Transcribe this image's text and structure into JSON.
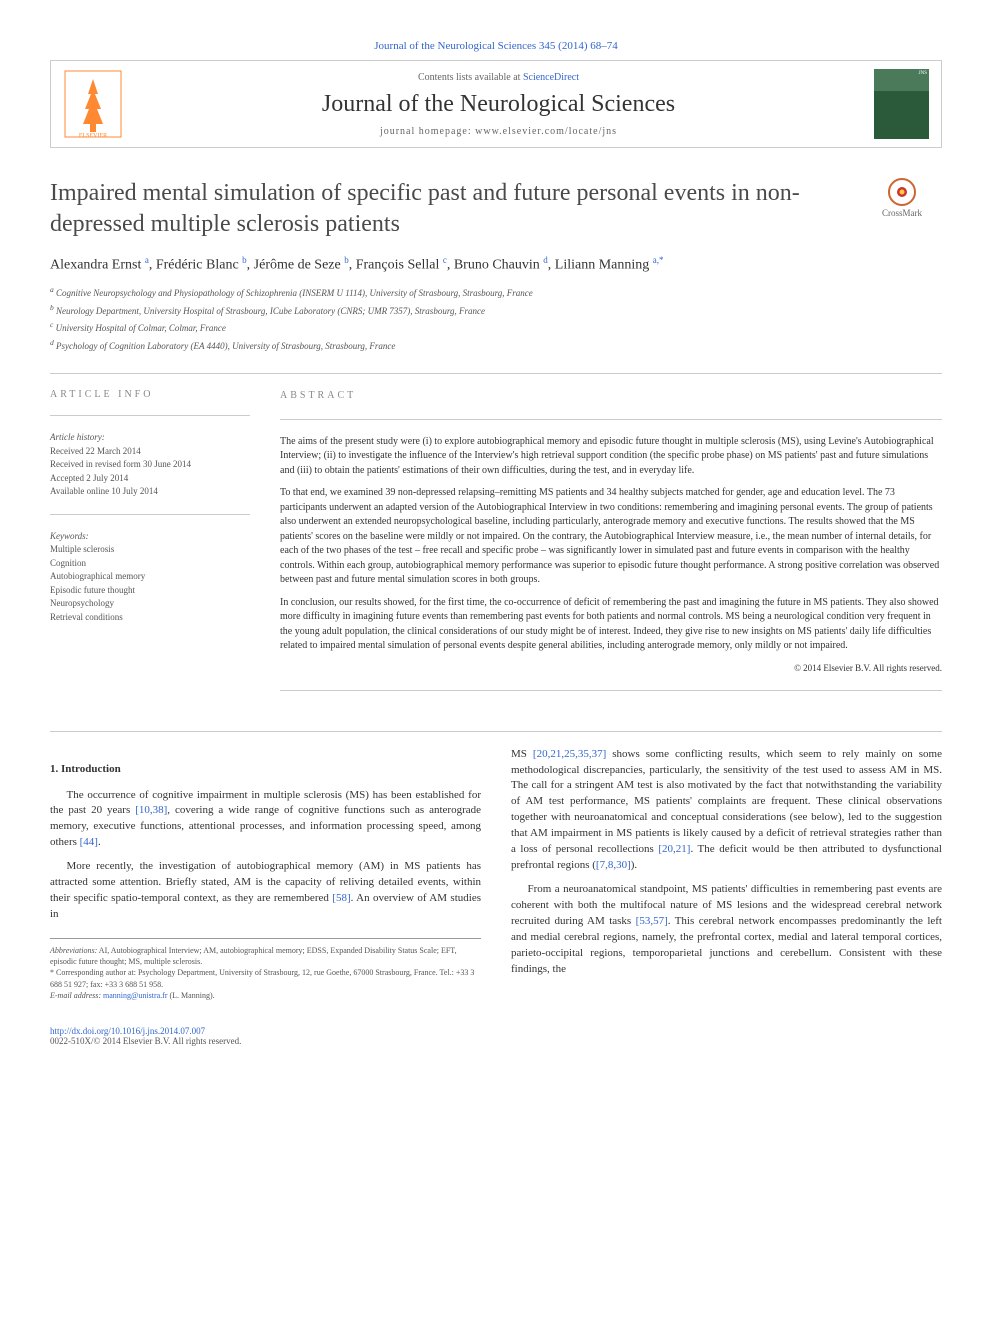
{
  "top_link": "Journal of the Neurological Sciences 345 (2014) 68–74",
  "header": {
    "contents_text": "Contents lists available at ",
    "contents_link": "ScienceDirect",
    "journal_name": "Journal of the Neurological Sciences",
    "homepage_label": "journal homepage: ",
    "homepage_url": "www.elsevier.com/locate/jns",
    "cover_label": "JNS"
  },
  "crossmark": "CrossMark",
  "title": "Impaired mental simulation of specific past and future personal events in non-depressed multiple sclerosis patients",
  "authors_html": "Alexandra Ernst <sup>a</sup>, Frédéric Blanc <sup>b</sup>, Jérôme de Seze <sup>b</sup>, François Sellal <sup>c</sup>, Bruno Chauvin <sup>d</sup>, Liliann Manning <sup>a,*</sup>",
  "affiliations": [
    "a Cognitive Neuropsychology and Physiopathology of Schizophrenia (INSERM U 1114), University of Strasbourg, Strasbourg, France",
    "b Neurology Department, University Hospital of Strasbourg, ICube Laboratory (CNRS; UMR 7357), Strasbourg, France",
    "c University Hospital of Colmar, Colmar, France",
    "d Psychology of Cognition Laboratory (EA 4440), University of Strasbourg, Strasbourg, France"
  ],
  "article_info": {
    "heading": "ARTICLE INFO",
    "history_label": "Article history:",
    "history": [
      "Received 22 March 2014",
      "Received in revised form 30 June 2014",
      "Accepted 2 July 2014",
      "Available online 10 July 2014"
    ],
    "keywords_label": "Keywords:",
    "keywords": [
      "Multiple sclerosis",
      "Cognition",
      "Autobiographical memory",
      "Episodic future thought",
      "Neuropsychology",
      "Retrieval conditions"
    ]
  },
  "abstract": {
    "heading": "ABSTRACT",
    "paragraphs": [
      "The aims of the present study were (i) to explore autobiographical memory and episodic future thought in multiple sclerosis (MS), using Levine's Autobiographical Interview; (ii) to investigate the influence of the Interview's high retrieval support condition (the specific probe phase) on MS patients' past and future simulations and (iii) to obtain the patients' estimations of their own difficulties, during the test, and in everyday life.",
      "To that end, we examined 39 non-depressed relapsing–remitting MS patients and 34 healthy subjects matched for gender, age and education level. The 73 participants underwent an adapted version of the Autobiographical Interview in two conditions: remembering and imagining personal events. The group of patients also underwent an extended neuropsychological baseline, including particularly, anterograde memory and executive functions. The results showed that the MS patients' scores on the baseline were mildly or not impaired. On the contrary, the Autobiographical Interview measure, i.e., the mean number of internal details, for each of the two phases of the test – free recall and specific probe – was significantly lower in simulated past and future events in comparison with the healthy controls. Within each group, autobiographical memory performance was superior to episodic future thought performance. A strong positive correlation was observed between past and future mental simulation scores in both groups.",
      "In conclusion, our results showed, for the first time, the co-occurrence of deficit of remembering the past and imagining the future in MS patients. They also showed more difficulty in imagining future events than remembering past events for both patients and normal controls. MS being a neurological condition very frequent in the young adult population, the clinical considerations of our study might be of interest. Indeed, they give rise to new insights on MS patients' daily life difficulties related to impaired mental simulation of personal events despite general abilities, including anterograde memory, only mildly or not impaired."
    ],
    "copyright": "© 2014 Elsevier B.V. All rights reserved."
  },
  "body": {
    "section_heading": "1. Introduction",
    "left_paragraphs": [
      "The occurrence of cognitive impairment in multiple sclerosis (MS) has been established for the past 20 years [10,38], covering a wide range of cognitive functions such as anterograde memory, executive functions, attentional processes, and information processing speed, among others [44].",
      "More recently, the investigation of autobiographical memory (AM) in MS patients has attracted some attention. Briefly stated, AM is the capacity of reliving detailed events, within their specific spatio-temporal context, as they are remembered [58]. An overview of AM studies in"
    ],
    "right_paragraphs": [
      "MS [20,21,25,35,37] shows some conflicting results, which seem to rely mainly on some methodological discrepancies, particularly, the sensitivity of the test used to assess AM in MS. The call for a stringent AM test is also motivated by the fact that notwithstanding the variability of AM test performance, MS patients' complaints are frequent. These clinical observations together with neuroanatomical and conceptual considerations (see below), led to the suggestion that AM impairment in MS patients is likely caused by a deficit of retrieval strategies rather than a loss of personal recollections [20,21]. The deficit would be then attributed to dysfunctional prefrontal regions ([7,8,30]).",
      "From a neuroanatomical standpoint, MS patients' difficulties in remembering past events are coherent with both the multifocal nature of MS lesions and the widespread cerebral network recruited during AM tasks [53,57]. This cerebral network encompasses predominantly the left and medial cerebral regions, namely, the prefrontal cortex, medial and lateral temporal cortices, parieto-occipital regions, temporoparietal junctions and cerebellum. Consistent with these findings, the"
    ]
  },
  "footnotes": {
    "abbrev_label": "Abbreviations:",
    "abbrev_text": " AI, Autobiographical Interview; AM, autobiographical memory; EDSS, Expanded Disability Status Scale; EFT, episodic future thought; MS, multiple sclerosis.",
    "corresp_marker": "* ",
    "corresp_text": "Corresponding author at: Psychology Department, University of Strasbourg, 12, rue Goethe, 67000 Strasbourg, France. Tel.: +33 3 688 51 927; fax: +33 3 688 51 958.",
    "email_label": "E-mail address: ",
    "email": "manning@unistra.fr",
    "email_suffix": " (L. Manning)."
  },
  "footer": {
    "doi": "http://dx.doi.org/10.1016/j.jns.2014.07.007",
    "issn": "0022-510X/© 2014 Elsevier B.V. All rights reserved."
  },
  "colors": {
    "link": "#3366cc",
    "elsevier_orange": "#ff8833",
    "text": "#333333",
    "heading_gray": "#888888",
    "border": "#cccccc"
  }
}
